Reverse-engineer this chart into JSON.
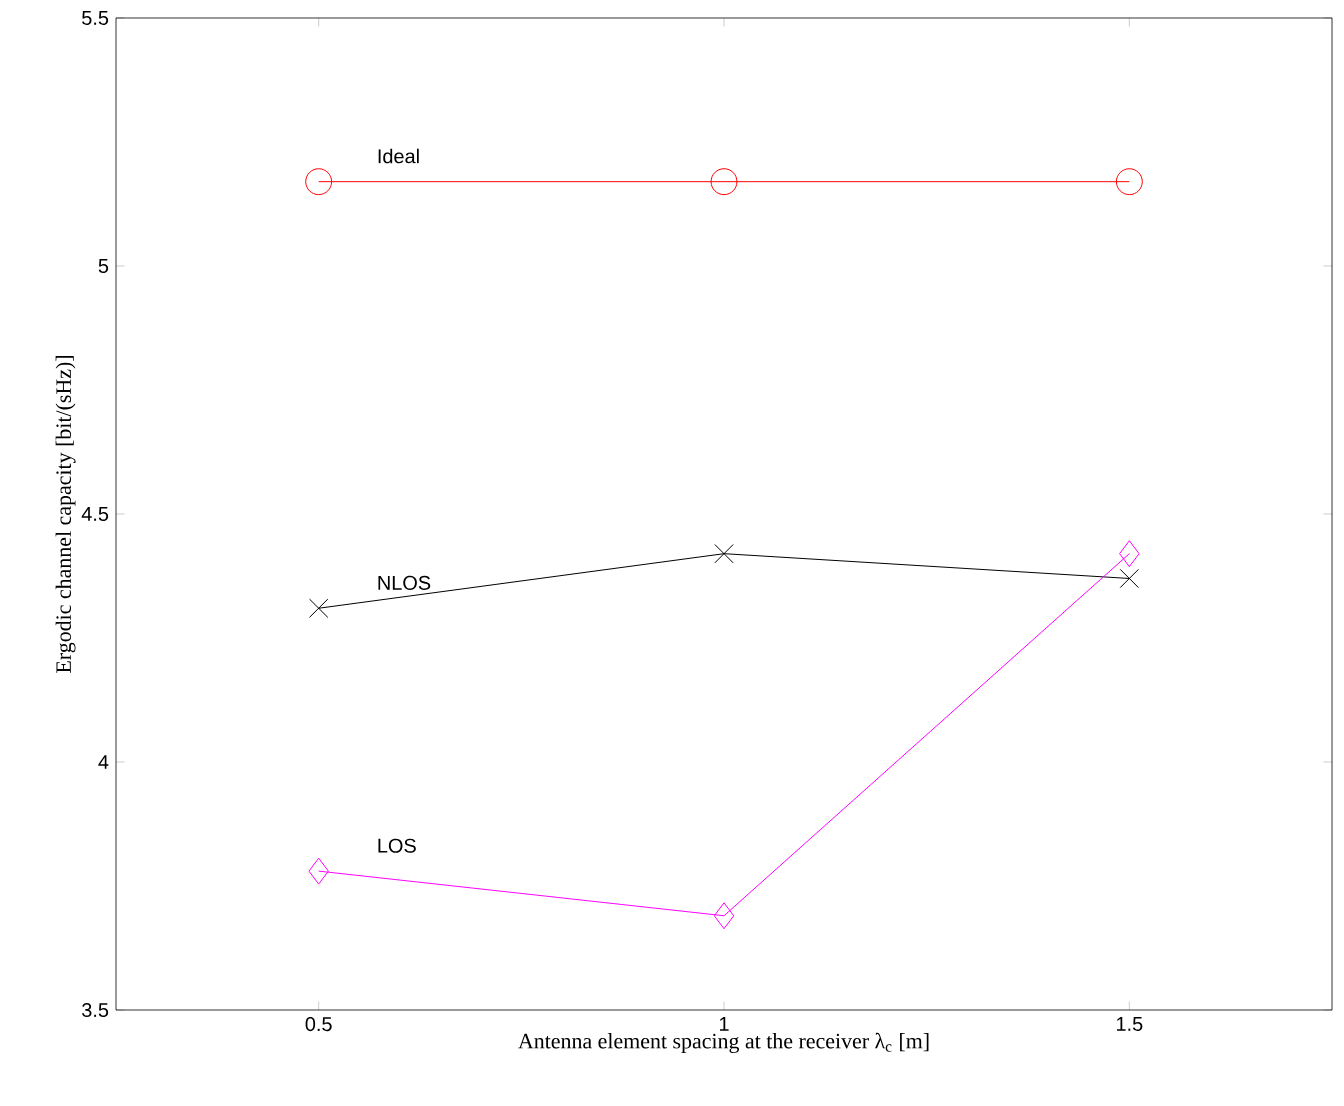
{
  "chart_data": {
    "type": "line",
    "xlabel": "Antenna element spacing at the receiver λ$_{c}$ [m]",
    "ylabel": "Ergodic channel capacity [bit/(sHz)]",
    "x": [
      0.5,
      1,
      1.5
    ],
    "xlim": [
      0.25,
      1.75
    ],
    "xticks": [
      0.5,
      1,
      1.5
    ],
    "ylim": [
      3.5,
      5.5
    ],
    "yticks": [
      3.5,
      4,
      4.5,
      5,
      5.5
    ],
    "series": [
      {
        "name": "Ideal",
        "color": "#ff0000",
        "marker": "circle",
        "values": [
          5.17,
          5.17,
          5.17
        ]
      },
      {
        "name": "NLOS",
        "color": "#000000",
        "marker": "cross",
        "values": [
          4.31,
          4.42,
          4.37
        ]
      },
      {
        "name": "LOS",
        "color": "#ff00ff",
        "marker": "diamond",
        "values": [
          3.78,
          3.69,
          4.42
        ]
      }
    ],
    "grid": false,
    "line_style": "solid"
  }
}
